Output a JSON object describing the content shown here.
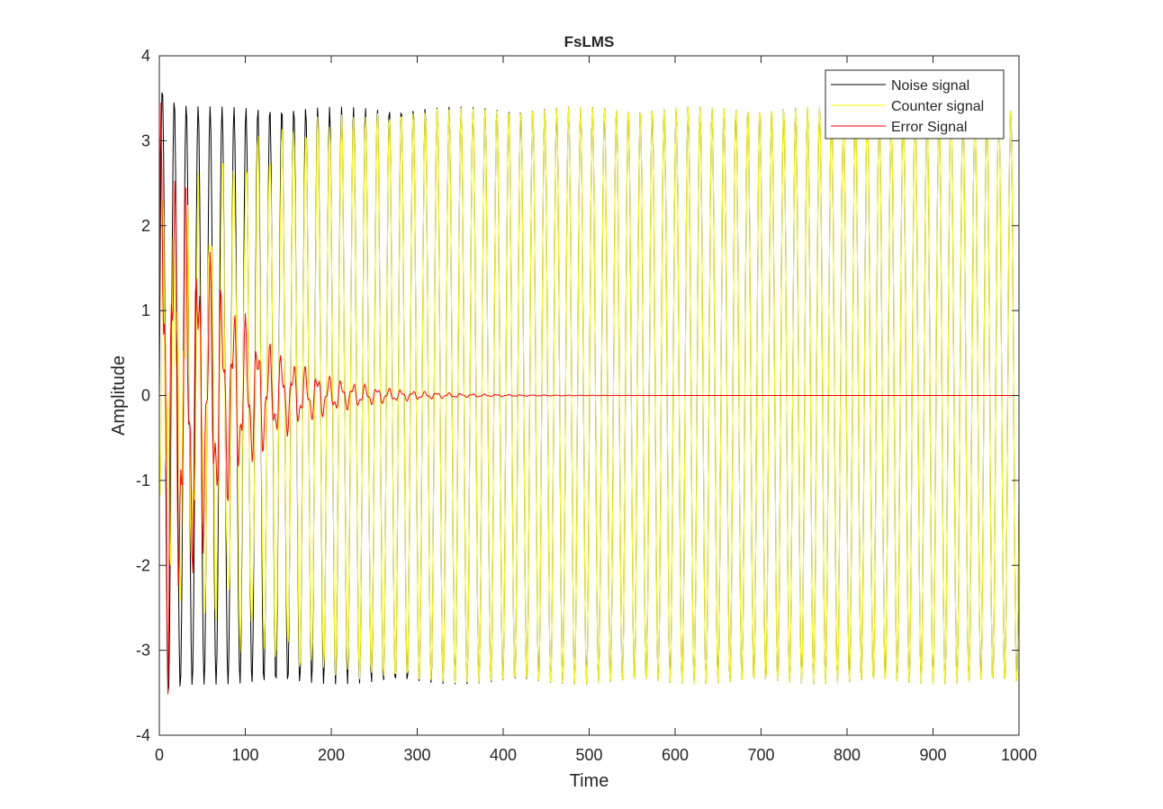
{
  "chart_data": {
    "type": "line",
    "title": "FsLMS",
    "xlabel": "Time",
    "ylabel": "Amplitude",
    "xlim": [
      0,
      1000
    ],
    "ylim": [
      -4,
      4
    ],
    "xticks": [
      0,
      100,
      200,
      300,
      400,
      500,
      600,
      700,
      800,
      900,
      1000
    ],
    "yticks": [
      -4,
      -3,
      -2,
      -1,
      0,
      1,
      2,
      3,
      4
    ],
    "grid": false,
    "legend_position": "top-right",
    "series": [
      {
        "name": "Noise signal",
        "color": "#000000",
        "amplitude": 3.4,
        "period_samples": 13.9,
        "start_peak": 3.7,
        "approx_values": "sinusoid of amplitude ~3.4 over x = 0 to 1000"
      },
      {
        "name": "Counter signal",
        "color": "#ffff00",
        "amplitude": 3.4,
        "period_samples": 13.9,
        "start_peak": 3.75,
        "approx_values": "grows from 0 to ~3.4 amplitude by x ~ 80, then steady sinusoid to 1000"
      },
      {
        "name": "Error Signal",
        "color": "#ff0000",
        "initial_amplitude": 3.7,
        "decay_time": 70,
        "settled_value": 0,
        "approx_values": "decaying oscillation, min ~ -3.75 near x = 12, near 0 after x ~ 350"
      }
    ]
  }
}
